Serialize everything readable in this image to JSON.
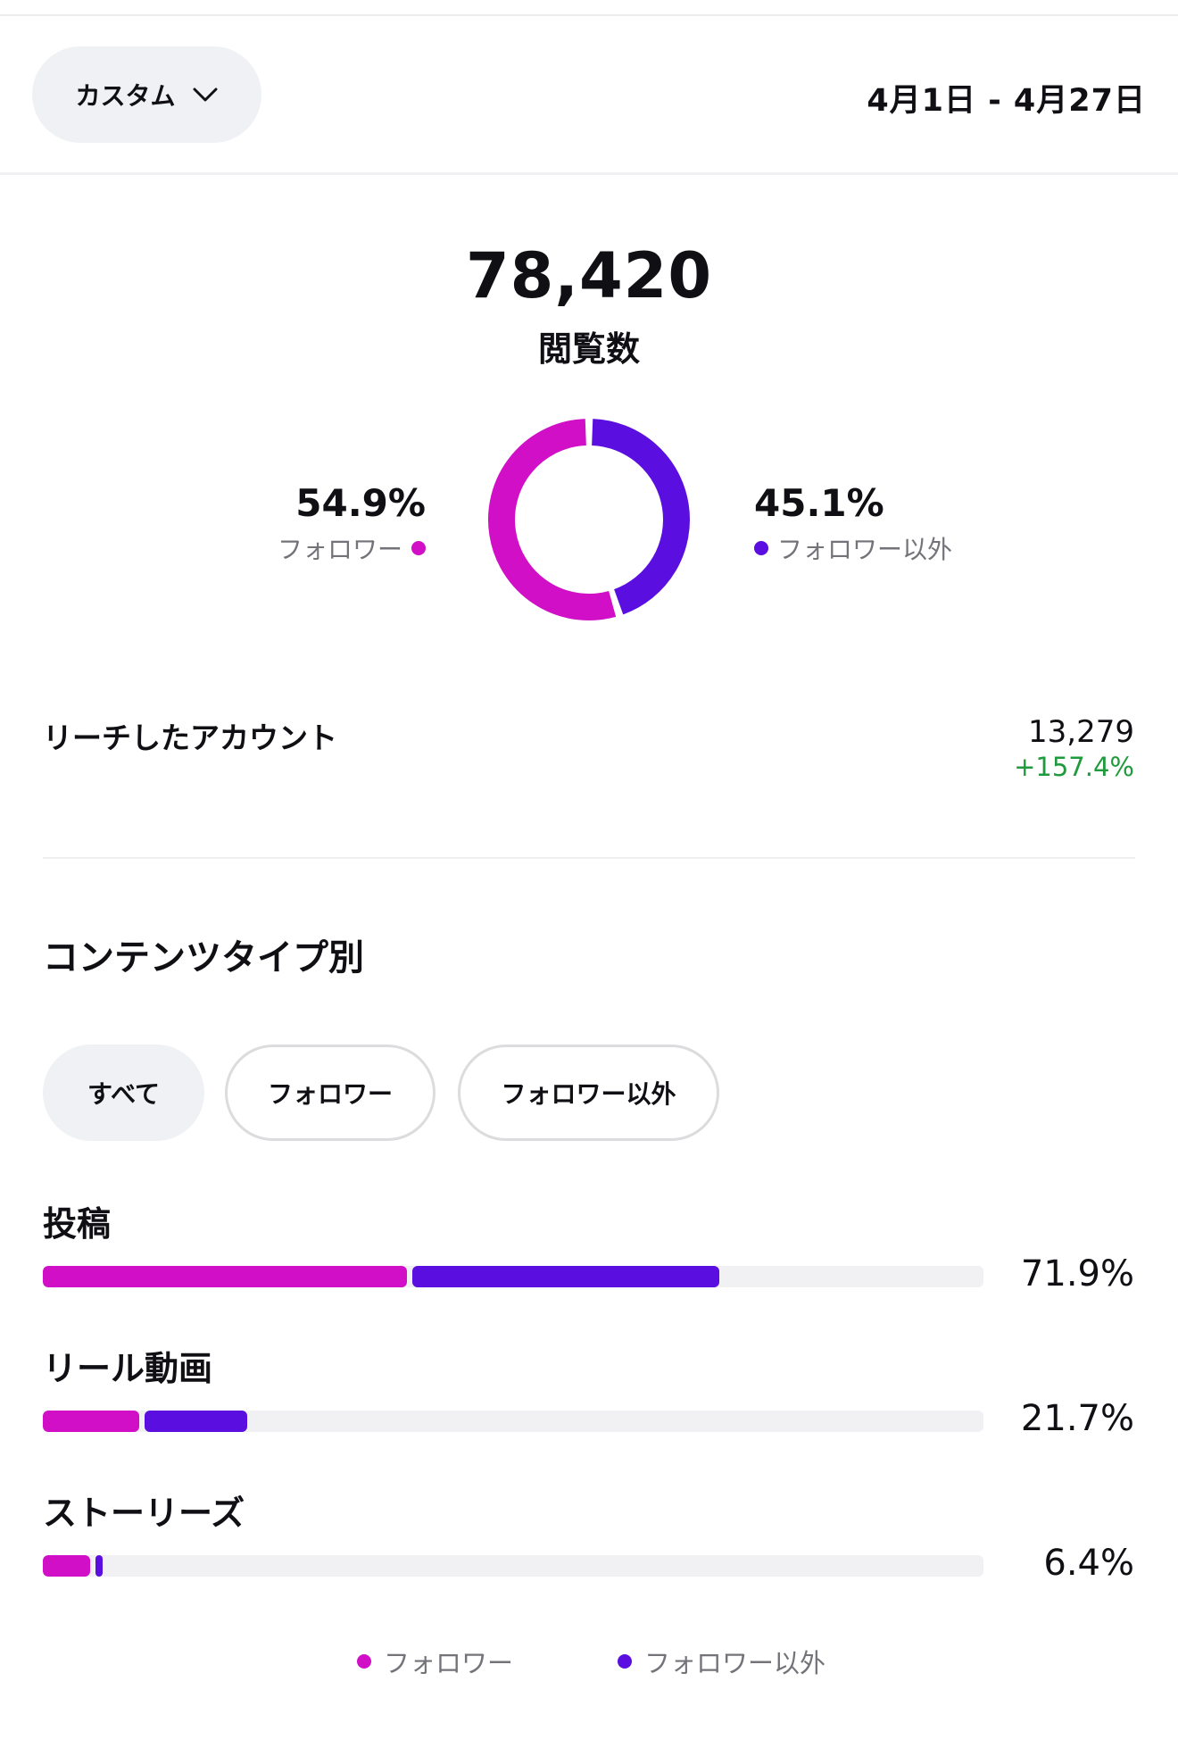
{
  "header": {
    "range_label": "カスタム",
    "date_range": "4月1日 - 4月27日"
  },
  "views": {
    "total": "78,420",
    "label": "閲覧数"
  },
  "breakdown": {
    "followers_pct": "54.9%",
    "followers_label": "フォロワー",
    "non_followers_pct": "45.1%",
    "non_followers_label": "フォロワー以外",
    "followers_fraction": 0.549,
    "non_followers_fraction": 0.451
  },
  "colors": {
    "followers": "#d10fc6",
    "non_followers": "#5a0fe0",
    "positive": "#1f9a3c",
    "track": "#f1f1f4"
  },
  "reach": {
    "label": "リーチしたアカウント",
    "value": "13,279",
    "change": "+157.4%"
  },
  "content_type": {
    "title": "コンテンツタイプ別",
    "filters": [
      "すべて",
      "フォロワー",
      "フォロワー以外"
    ],
    "active_filter": "すべて",
    "rows": [
      {
        "label": "投稿",
        "pct_text": "71.9%",
        "followers_share": 0.39,
        "non_followers_share": 0.329
      },
      {
        "label": "リール動画",
        "pct_text": "21.7%",
        "followers_share": 0.105,
        "non_followers_share": 0.112
      },
      {
        "label": "ストーリーズ",
        "pct_text": "6.4%",
        "followers_share": 0.053,
        "non_followers_share": 0.011
      }
    ]
  },
  "legend": {
    "followers": "フォロワー",
    "non_followers": "フォロワー以外"
  }
}
